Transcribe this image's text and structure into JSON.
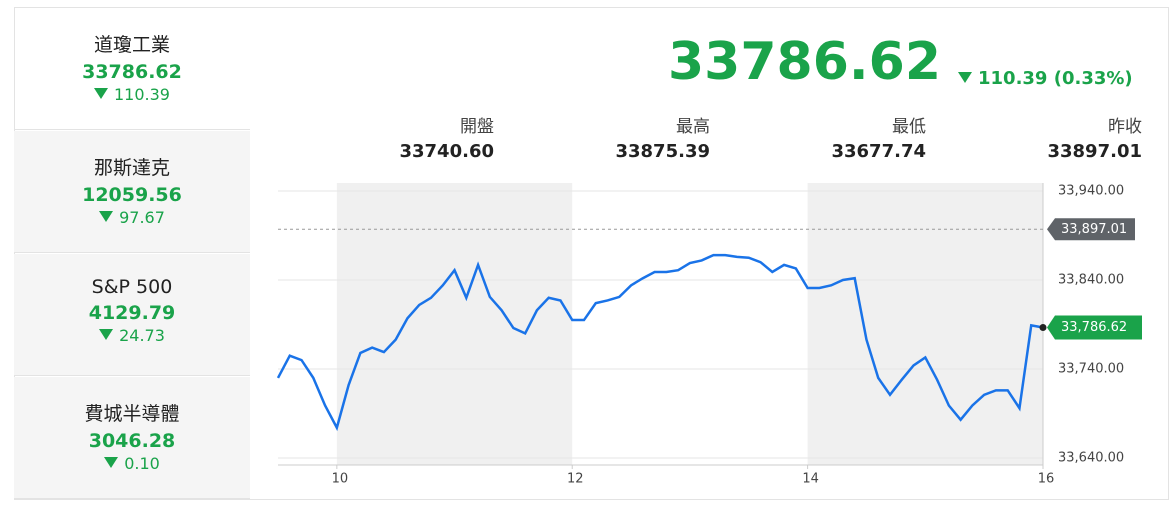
{
  "sidebar": [
    {
      "name": "道瓊工業",
      "price": "33786.62",
      "change": "110.39"
    },
    {
      "name": "那斯達克",
      "price": "12059.56",
      "change": "97.67"
    },
    {
      "name": "S&P 500",
      "price": "4129.79",
      "change": "24.73"
    },
    {
      "name": "費城半導體",
      "price": "3046.28",
      "change": "0.10"
    }
  ],
  "header": {
    "price": "33786.62",
    "change": "110.39 (0.33%)"
  },
  "stats": [
    {
      "label": "開盤",
      "value": "33740.60"
    },
    {
      "label": "最高",
      "value": "33875.39"
    },
    {
      "label": "最低",
      "value": "33677.74"
    },
    {
      "label": "昨收",
      "value": "33897.01"
    }
  ],
  "chart_data": {
    "type": "line",
    "x": [
      9.5,
      9.6,
      9.7,
      9.8,
      9.9,
      10.0,
      10.1,
      10.2,
      10.3,
      10.4,
      10.5,
      10.6,
      10.7,
      10.8,
      10.9,
      11.0,
      11.1,
      11.2,
      11.3,
      11.4,
      11.5,
      11.6,
      11.7,
      11.8,
      11.9,
      12.0,
      12.1,
      12.2,
      12.3,
      12.4,
      12.5,
      12.6,
      12.7,
      12.8,
      12.9,
      13.0,
      13.1,
      13.2,
      13.3,
      13.4,
      13.5,
      13.6,
      13.7,
      13.8,
      13.9,
      14.0,
      14.1,
      14.2,
      14.3,
      14.4,
      14.5,
      14.6,
      14.7,
      14.8,
      14.9,
      15.0,
      15.1,
      15.2,
      15.3,
      15.4,
      15.5,
      15.6,
      15.7,
      15.8,
      15.9,
      16.0
    ],
    "series": [
      {
        "color": "#1a73e8",
        "values": [
          33730,
          33755,
          33750,
          33730,
          33699,
          33674,
          33722,
          33758,
          33764,
          33759,
          33773,
          33797,
          33812,
          33820,
          33834,
          33851,
          33820,
          33857,
          33821,
          33806,
          33786,
          33780,
          33806,
          33820,
          33817,
          33795,
          33795,
          33814,
          33817,
          33821,
          33834,
          33842,
          33849,
          33849,
          33851,
          33859,
          33862,
          33868,
          33868,
          33866,
          33865,
          33860,
          33849,
          33857,
          33853,
          33831,
          33831,
          33834,
          33840,
          33842,
          33773,
          33730,
          33711,
          33728,
          33744,
          33753,
          33728,
          33699,
          33683,
          33699,
          33711,
          33716,
          33716,
          33696,
          33789,
          33786.62
        ]
      }
    ],
    "xlim": [
      9.5,
      16
    ],
    "xticks": [
      10,
      12,
      14,
      16
    ],
    "ylim": [
      33640,
      33940
    ],
    "yticks": [
      {
        "value": 33640,
        "label": "33,640.00"
      },
      {
        "value": 33740,
        "label": "33,740.00"
      },
      {
        "value": 33840,
        "label": "33,840.00"
      },
      {
        "value": 33940,
        "label": "33,940.00"
      }
    ],
    "grid": true,
    "prev_close": {
      "value": 33897.01,
      "label": "33,897.01"
    },
    "last": {
      "value": 33786.62,
      "label": "33,786.62"
    }
  }
}
